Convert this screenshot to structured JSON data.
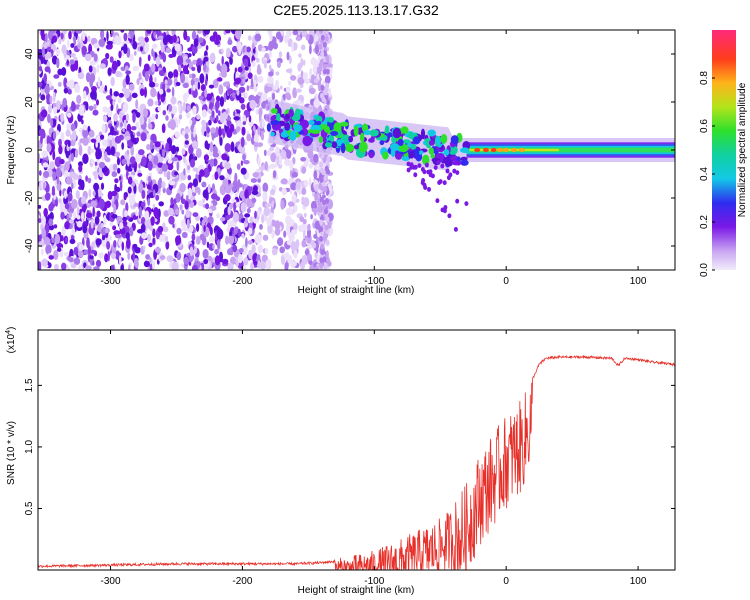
{
  "title": "C2E5.2025.113.13.17.G32",
  "chart_data": [
    {
      "type": "heatmap",
      "xlabel": "Height of straight line (km)",
      "ylabel": "Frequency (Hz)",
      "xlim": [
        -355,
        128
      ],
      "ylim": [
        -50,
        50
      ],
      "xticks": [
        -300,
        -200,
        -100,
        0,
        100
      ],
      "yticks": [
        -40,
        -20,
        0,
        20,
        40
      ],
      "colorbar": {
        "label": "Normalized spectral amplitude",
        "range": [
          0.0,
          1.0
        ],
        "ticks": [
          "0.0",
          "0.2",
          "0.4",
          "0.6",
          "0.8"
        ],
        "tick_values": [
          0.0,
          0.2,
          0.4,
          0.6,
          0.8
        ]
      },
      "features": {
        "noise_region_x": [
          -355,
          -180
        ],
        "carrier_frequency_hz": 0,
        "carrier_start_x": -30
      }
    },
    {
      "type": "line",
      "xlabel": "Height of straight line (km)",
      "ylabel": "SNR (10 * v/v)",
      "yscale_label": "(x10",
      "yscale_exp": "4",
      "xlim": [
        -355,
        128
      ],
      "ylim": [
        0.0,
        1.95
      ],
      "xticks": [
        -300,
        -200,
        -100,
        0,
        100
      ],
      "yticks": [
        0.5,
        1.0,
        1.5
      ],
      "ytick_labels": [
        "0.5",
        "1.0",
        "1.5"
      ],
      "color": "#e8302a",
      "series": [
        {
          "x": [
            -355,
            -300,
            -250,
            -200,
            -160,
            -140,
            -120,
            -100,
            -80,
            -60,
            -50,
            -40,
            -30,
            -20,
            -10,
            0,
            10,
            15,
            20,
            25,
            30,
            40,
            60,
            80,
            85,
            90,
            100,
            110,
            128
          ],
          "values": [
            0.03,
            0.04,
            0.05,
            0.05,
            0.05,
            0.06,
            0.08,
            0.12,
            0.2,
            0.3,
            0.35,
            0.45,
            0.6,
            0.85,
            1.0,
            1.15,
            1.25,
            1.35,
            1.55,
            1.67,
            1.72,
            1.73,
            1.73,
            1.72,
            1.66,
            1.72,
            1.71,
            1.69,
            1.67
          ]
        }
      ]
    }
  ]
}
